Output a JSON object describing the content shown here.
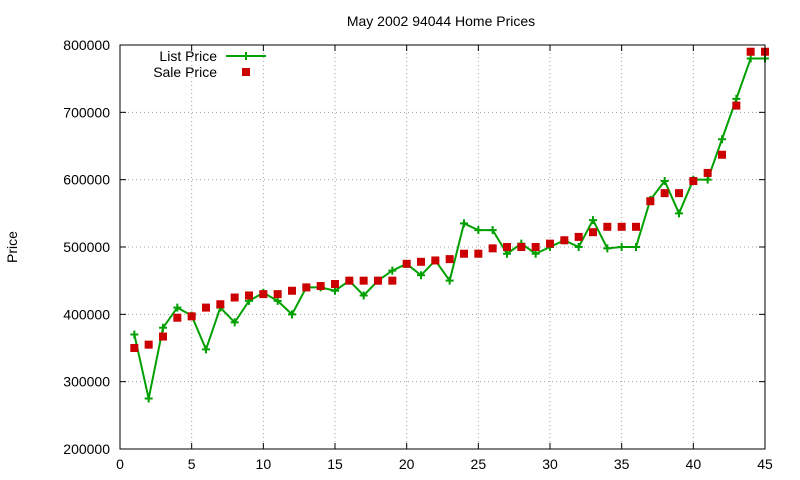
{
  "chart_data": {
    "type": "line",
    "title": "May 2002 94044 Home Prices",
    "xlabel": "",
    "ylabel": "Price",
    "xlim": [
      0,
      45
    ],
    "ylim": [
      200000,
      800000
    ],
    "xticks": [
      0,
      5,
      10,
      15,
      20,
      25,
      30,
      35,
      40,
      45
    ],
    "yticks": [
      200000,
      300000,
      400000,
      500000,
      600000,
      700000,
      800000
    ],
    "grid": true,
    "legend_position": "top-left",
    "series": [
      {
        "name": "List Price",
        "style": "linespoints",
        "marker": "plus",
        "color": "#00a000",
        "x": [
          1,
          2,
          3,
          4,
          5,
          6,
          7,
          8,
          9,
          10,
          11,
          12,
          13,
          14,
          15,
          16,
          17,
          18,
          19,
          20,
          21,
          22,
          23,
          24,
          25,
          26,
          27,
          28,
          29,
          30,
          31,
          32,
          33,
          34,
          35,
          36,
          37,
          38,
          39,
          40,
          41,
          42,
          43,
          44,
          45
        ],
        "values": [
          370000,
          275000,
          380000,
          410000,
          398000,
          348000,
          410000,
          388000,
          420000,
          432000,
          420000,
          400000,
          440000,
          440000,
          435000,
          450000,
          428000,
          450000,
          465000,
          475000,
          458000,
          480000,
          450000,
          535000,
          525000,
          525000,
          490000,
          505000,
          490000,
          500000,
          510000,
          500000,
          540000,
          498000,
          500000,
          500000,
          570000,
          598000,
          550000,
          600000,
          600000,
          660000,
          720000,
          780000,
          780000
        ]
      },
      {
        "name": "Sale Price",
        "style": "points",
        "marker": "square",
        "color": "#cc0000",
        "x": [
          1,
          2,
          3,
          4,
          5,
          6,
          7,
          8,
          9,
          10,
          11,
          12,
          13,
          14,
          15,
          16,
          17,
          18,
          19,
          20,
          21,
          22,
          23,
          24,
          25,
          26,
          27,
          28,
          29,
          30,
          31,
          32,
          33,
          34,
          35,
          36,
          37,
          38,
          39,
          40,
          41,
          42,
          43,
          44,
          45
        ],
        "values": [
          350000,
          355000,
          367000,
          395000,
          397000,
          410000,
          415000,
          425000,
          428000,
          430000,
          430000,
          435000,
          440000,
          442000,
          445000,
          450000,
          450000,
          450000,
          450000,
          475000,
          478000,
          480000,
          482000,
          490000,
          490000,
          498000,
          500000,
          500000,
          500000,
          505000,
          510000,
          515000,
          522000,
          530000,
          530000,
          530000,
          568000,
          580000,
          580000,
          598000,
          610000,
          637000,
          710000,
          790000,
          790000
        ]
      }
    ]
  }
}
